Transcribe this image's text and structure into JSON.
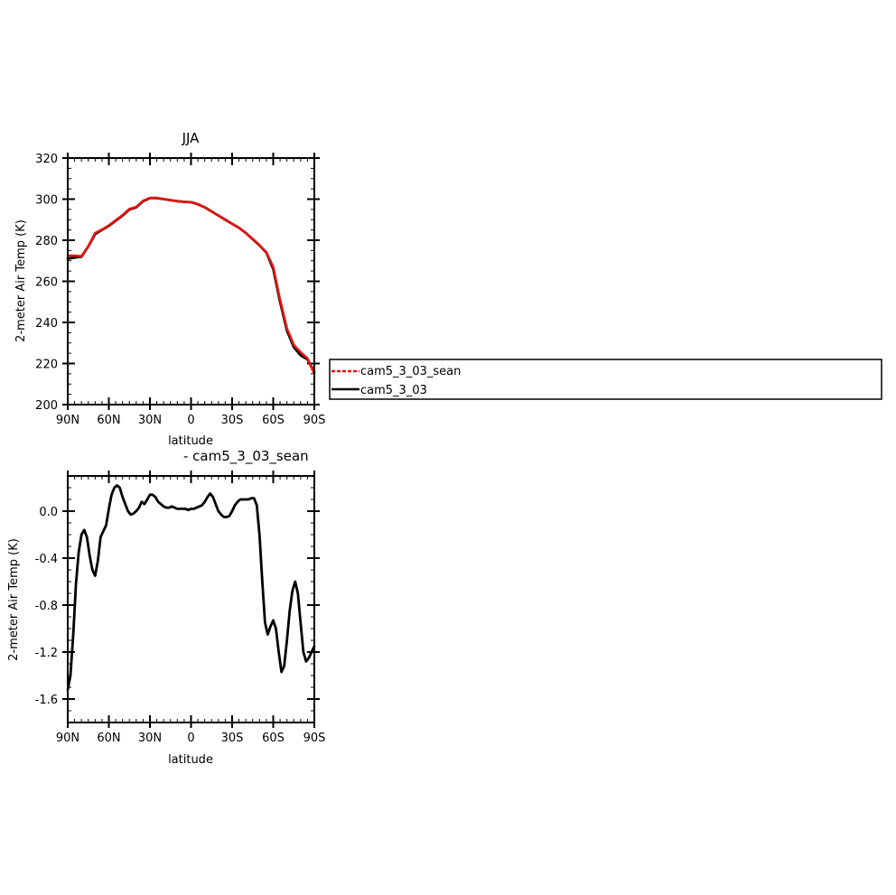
{
  "chart_data": [
    {
      "type": "line",
      "title": "JJA",
      "xlabel": "latitude",
      "ylabel": "2-meter Air Temp (K)",
      "xlim": [
        90,
        -90
      ],
      "ylim": [
        200,
        320
      ],
      "x_tick_values": [
        90,
        60,
        30,
        0,
        -30,
        -60,
        -90
      ],
      "x_tick_labels": [
        "90N",
        "60N",
        "30N",
        "0",
        "30S",
        "60S",
        "90S"
      ],
      "y_ticks": [
        "200",
        "220",
        "240",
        "260",
        "280",
        "300",
        "320"
      ],
      "legend": {
        "position": "right",
        "entries": [
          {
            "label": "cam5_3_03_sean",
            "color": "#e8120c",
            "style": "dashed"
          },
          {
            "label": "cam5_3_03",
            "color": "#000000",
            "style": "solid"
          }
        ]
      },
      "series": [
        {
          "name": "cam5_3_03",
          "color": "#000000",
          "x": [
            90,
            85,
            80,
            75,
            70,
            65,
            60,
            55,
            50,
            45,
            40,
            35,
            30,
            25,
            20,
            15,
            10,
            5,
            0,
            -5,
            -10,
            -15,
            -20,
            -25,
            -30,
            -35,
            -40,
            -45,
            -50,
            -55,
            -60,
            -65,
            -70,
            -75,
            -80,
            -85,
            -90
          ],
          "values": [
            271,
            271.5,
            272,
            277,
            283,
            285,
            287,
            289.5,
            292,
            295,
            296,
            299,
            300.5,
            300.5,
            300,
            299.5,
            299,
            298.7,
            298.5,
            297.5,
            296,
            294,
            292,
            290,
            288,
            286,
            283.5,
            280.5,
            277.5,
            274,
            266,
            250,
            236,
            228,
            224,
            222,
            216
          ]
        },
        {
          "name": "cam5_3_03_sean",
          "color": "#e8120c",
          "x": [
            90,
            85,
            80,
            75,
            70,
            65,
            60,
            55,
            50,
            45,
            40,
            35,
            30,
            25,
            20,
            15,
            10,
            5,
            0,
            -5,
            -10,
            -15,
            -20,
            -25,
            -30,
            -35,
            -40,
            -45,
            -50,
            -55,
            -60,
            -65,
            -70,
            -75,
            -80,
            -85,
            -90
          ],
          "values": [
            272.5,
            272.5,
            272.2,
            277,
            283.5,
            285.2,
            287.2,
            289.7,
            292.2,
            295.2,
            296.2,
            299.2,
            300.6,
            300.6,
            300.1,
            299.5,
            299,
            298.7,
            298.5,
            297.6,
            296.1,
            294,
            292.1,
            290.1,
            288,
            286,
            283.5,
            280.6,
            277.6,
            274.1,
            267,
            251,
            237,
            229,
            225.5,
            222.5,
            215
          ]
        }
      ]
    },
    {
      "type": "line",
      "title": "- cam5_3_03_sean",
      "xlabel": "latitude",
      "ylabel": "2-meter Air Temp (K)",
      "xlim": [
        90,
        -90
      ],
      "ylim": [
        -1.8,
        0.3
      ],
      "x_tick_values": [
        90,
        60,
        30,
        0,
        -30,
        -60,
        -90
      ],
      "x_tick_labels": [
        "90N",
        "60N",
        "30N",
        "0",
        "30S",
        "60S",
        "90S"
      ],
      "y_tick_values": [
        -1.6,
        -1.2,
        -0.8,
        -0.4,
        0.0
      ],
      "y_tick_labels": [
        "-1.6",
        "-1.2",
        "-0.8",
        "-0.4",
        "0.0"
      ],
      "series": [
        {
          "color": "#000000",
          "x": [
            90,
            88,
            86,
            84,
            82,
            80,
            78,
            76,
            74,
            72,
            70,
            68,
            66,
            64,
            62,
            60,
            58,
            56,
            54,
            52,
            50,
            48,
            46,
            44,
            42,
            40,
            38,
            36,
            34,
            32,
            30,
            28,
            26,
            24,
            22,
            20,
            18,
            16,
            14,
            12,
            10,
            8,
            6,
            4,
            2,
            0,
            -2,
            -4,
            -6,
            -8,
            -10,
            -12,
            -14,
            -16,
            -18,
            -20,
            -22,
            -24,
            -26,
            -28,
            -30,
            -32,
            -34,
            -36,
            -38,
            -40,
            -42,
            -44,
            -46,
            -48,
            -50,
            -52,
            -54,
            -56,
            -58,
            -60,
            -62,
            -64,
            -66,
            -68,
            -70,
            -72,
            -74,
            -76,
            -78,
            -80,
            -82,
            -84,
            -86,
            -88,
            -90
          ],
          "values": [
            -1.52,
            -1.4,
            -1.05,
            -0.62,
            -0.35,
            -0.2,
            -0.16,
            -0.22,
            -0.38,
            -0.5,
            -0.55,
            -0.42,
            -0.22,
            -0.17,
            -0.12,
            0.02,
            0.14,
            0.2,
            0.22,
            0.2,
            0.12,
            0.06,
            0.0,
            -0.03,
            -0.02,
            0.0,
            0.03,
            0.08,
            0.06,
            0.1,
            0.14,
            0.14,
            0.12,
            0.08,
            0.06,
            0.04,
            0.03,
            0.03,
            0.04,
            0.03,
            0.02,
            0.02,
            0.02,
            0.02,
            0.01,
            0.02,
            0.02,
            0.03,
            0.04,
            0.05,
            0.08,
            0.12,
            0.15,
            0.12,
            0.06,
            0.0,
            -0.03,
            -0.05,
            -0.05,
            -0.04,
            0.0,
            0.05,
            0.08,
            0.1,
            0.1,
            0.1,
            0.1,
            0.11,
            0.11,
            0.05,
            -0.2,
            -0.6,
            -0.95,
            -1.05,
            -0.98,
            -0.93,
            -1.0,
            -1.2,
            -1.37,
            -1.32,
            -1.1,
            -0.85,
            -0.68,
            -0.6,
            -0.7,
            -0.95,
            -1.2,
            -1.28,
            -1.25,
            -1.2,
            -1.15
          ]
        }
      ]
    }
  ]
}
